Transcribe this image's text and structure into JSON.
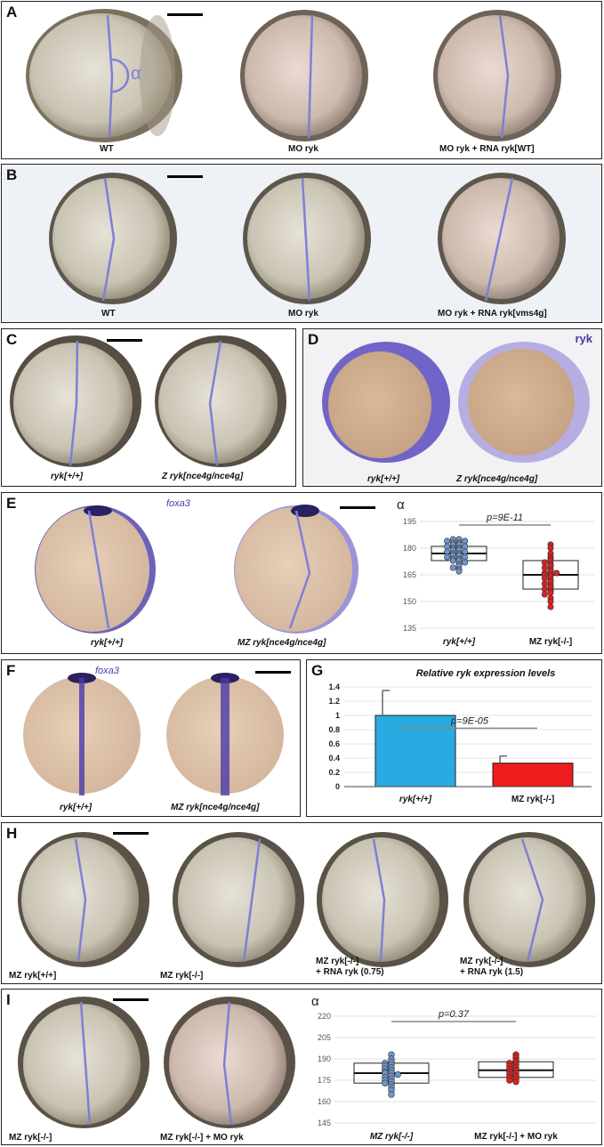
{
  "panels": {
    "A": {
      "label": "A",
      "captions": [
        "WT",
        "MO ryk",
        "MO ryk + RNA ryk[WT]"
      ],
      "alpha": "α"
    },
    "B": {
      "label": "B",
      "captions": [
        "WT",
        "MO ryk",
        "MO ryk + RNA ryk[vms4g]"
      ]
    },
    "C": {
      "label": "C",
      "captions": [
        "ryk[+/+]",
        "Z ryk[nce4g/nce4g]"
      ]
    },
    "D": {
      "label": "D",
      "stain": "ryk",
      "captions": [
        "ryk[+/+]",
        "Z ryk[nce4g/nce4g]"
      ]
    },
    "E": {
      "label": "E",
      "stain": "foxa3",
      "captions": [
        "ryk[+/+]",
        "MZ ryk[nce4g/nce4g]"
      ]
    },
    "F": {
      "label": "F",
      "stain": "foxa3",
      "captions": [
        "ryk[+/+]",
        "MZ ryk[nce4g/nce4g]"
      ]
    },
    "G": {
      "label": "G"
    },
    "H": {
      "label": "H",
      "captions": [
        "MZ ryk[+/+]",
        "MZ ryk[-/-]",
        "MZ ryk[-/-]",
        "+ RNA ryk (0.75)",
        "MZ ryk[-/-]",
        "+ RNA ryk (1.5)"
      ]
    },
    "I": {
      "label": "I",
      "captions": [
        "MZ ryk[-/-]",
        "MZ ryk[-/-] + MO ryk"
      ]
    }
  },
  "colors": {
    "line": "#7f7fd6",
    "blue_dot": "#6f95c9",
    "red_dot": "#e02020",
    "bar_blue": "#29abe2",
    "bar_red": "#ee1c1c",
    "stain": "#4a3aa8"
  },
  "chart_data": [
    {
      "type": "scatter",
      "panel": "E",
      "ylabel": "α",
      "ylim": [
        135,
        200
      ],
      "yticks": [
        135,
        150,
        165,
        180,
        195
      ],
      "categories": [
        "ryk[+/+]",
        "MZ ryk[-/-]"
      ],
      "annotation": "p=9E-11",
      "series": [
        {
          "name": "ryk[+/+]",
          "color": "#6f95c9",
          "box": {
            "q1": 173,
            "median": 177,
            "q3": 181
          },
          "values": [
            185,
            185,
            184,
            184,
            183,
            183,
            182,
            182,
            181,
            181,
            180,
            180,
            179,
            179,
            178,
            178,
            177,
            177,
            176,
            176,
            175,
            175,
            174,
            174,
            173,
            173,
            172,
            171,
            170,
            169,
            168,
            167
          ]
        },
        {
          "name": "MZ ryk[-/-]",
          "color": "#e02020",
          "box": {
            "q1": 157,
            "median": 165,
            "q3": 173
          },
          "values": [
            182,
            180,
            177,
            175,
            174,
            173,
            172,
            171,
            170,
            169,
            168,
            167,
            166,
            166,
            165,
            165,
            164,
            163,
            162,
            161,
            160,
            159,
            158,
            157,
            156,
            155,
            154,
            152,
            150,
            147
          ]
        }
      ]
    },
    {
      "type": "bar",
      "panel": "G",
      "title": "Relative ryk expression levels",
      "categories": [
        "ryk[+/+]",
        "MZ ryk[-/-]"
      ],
      "values": [
        1.0,
        0.33
      ],
      "errors": [
        0.35,
        0.1
      ],
      "ylim": [
        0,
        1.4
      ],
      "yticks": [
        0,
        0.2,
        0.4,
        0.6,
        0.8,
        1,
        1.2,
        1.4
      ],
      "annotation": "p=9E-05",
      "colors": [
        "#29abe2",
        "#ee1c1c"
      ]
    },
    {
      "type": "scatter",
      "panel": "I",
      "ylabel": "α",
      "ylim": [
        145,
        225
      ],
      "yticks": [
        145,
        160,
        175,
        190,
        205,
        220
      ],
      "categories": [
        "MZ ryk[-/-]",
        "MZ ryk[-/-] + MO ryk"
      ],
      "annotation": "p=0.37",
      "series": [
        {
          "name": "MZ ryk[-/-]",
          "color": "#6f95c9",
          "box": {
            "q1": 173,
            "median": 180,
            "q3": 187
          },
          "values": [
            193,
            190,
            188,
            187,
            186,
            185,
            184,
            183,
            182,
            181,
            180,
            180,
            179,
            178,
            177,
            176,
            175,
            174,
            173,
            172,
            170,
            168,
            165
          ]
        },
        {
          "name": "MZ ryk[-/-] + MO ryk",
          "color": "#e02020",
          "box": {
            "q1": 177,
            "median": 182,
            "q3": 188
          },
          "values": [
            193,
            191,
            189,
            188,
            187,
            186,
            185,
            184,
            183,
            182,
            181,
            180,
            179,
            178,
            177,
            176,
            175,
            174
          ]
        }
      ]
    }
  ]
}
